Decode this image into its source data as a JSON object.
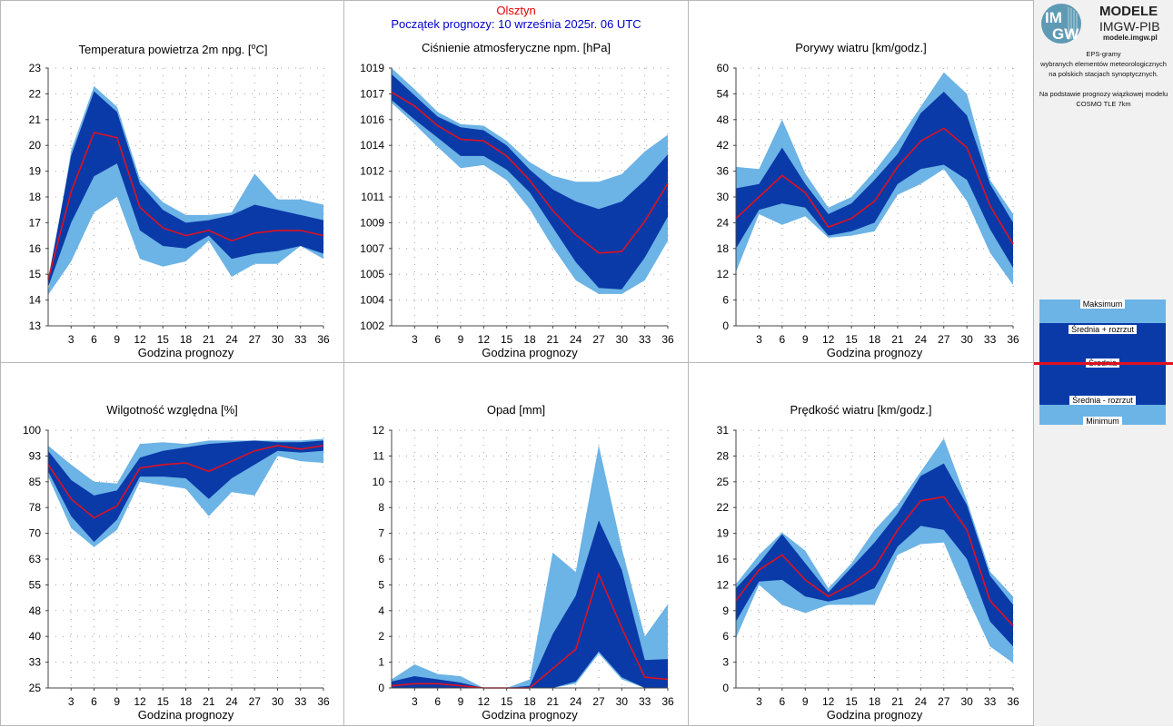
{
  "header": {
    "location": "Olsztyn",
    "forecast_start": "Początek prognozy: 10 września 2025r. 06 UTC"
  },
  "logo": {
    "im": "IM",
    "gw": "GW",
    "title": "MODELE",
    "subtitle": "IMGW-PIB",
    "url": "modele.imgw.pl"
  },
  "description": {
    "line1": "EPS-gramy",
    "line2": "wybranych elementów meteorologicznych",
    "line3": "na polskich stacjach  synoptycznych.",
    "line4": "Na podstawie prognozy wiązkowej modelu",
    "line5": "COSMO TLE 7km"
  },
  "legend": {
    "max": "Maksimum",
    "mean_plus": "Średnia + rozrzut",
    "mean": "Średnia",
    "mean_minus": "Średnia - rozrzut",
    "min": "Minimum"
  },
  "colors": {
    "outer_band": "#6cb3e6",
    "inner_band": "#0a3aa8",
    "mean_line": "#e01020",
    "grid": "#a0a0a0"
  },
  "chart_data": [
    {
      "type": "area",
      "title_html": "Temperatura powietrza 2m npg. [<tspan dy='-5' font-size='9'>o</tspan><tspan dy='5'>C]</tspan>",
      "title": "Temperatura powietrza 2m npg. [oC]",
      "xlabel": "Godzina prognozy",
      "x": [
        0,
        3,
        6,
        9,
        12,
        15,
        18,
        21,
        24,
        27,
        30,
        33,
        36
      ],
      "xticks": [
        3,
        6,
        9,
        12,
        15,
        18,
        21,
        24,
        27,
        30,
        33,
        36
      ],
      "xlim": [
        0,
        36
      ],
      "ylim": [
        13,
        23
      ],
      "yticks": [
        "13",
        "14",
        "15",
        "16",
        "17",
        "18",
        "19",
        "20",
        "21",
        "22",
        "23"
      ],
      "ytick_values": [
        13,
        14,
        15,
        16,
        17,
        18,
        19,
        20,
        21,
        22,
        23
      ],
      "max": [
        14.3,
        19.8,
        22.3,
        21.5,
        18.7,
        17.8,
        17.3,
        17.3,
        17.4,
        18.9,
        17.9,
        17.9,
        17.7
      ],
      "mean_plus": [
        14.8,
        19.6,
        22.1,
        21.3,
        18.5,
        17.5,
        17.0,
        17.1,
        17.3,
        17.7,
        17.5,
        17.3,
        17.1
      ],
      "mean": [
        14.8,
        18.2,
        20.5,
        20.3,
        17.6,
        16.8,
        16.5,
        16.7,
        16.3,
        16.6,
        16.7,
        16.7,
        16.5
      ],
      "mean_minus": [
        14.5,
        17.0,
        18.8,
        19.3,
        16.7,
        16.1,
        16.0,
        16.5,
        15.6,
        15.8,
        15.9,
        16.1,
        15.8
      ],
      "min": [
        14.2,
        15.5,
        17.4,
        18.0,
        15.6,
        15.3,
        15.5,
        16.3,
        14.9,
        15.4,
        15.4,
        16.1,
        15.6
      ]
    },
    {
      "type": "area",
      "title": "Ciśnienie atmosferyczne npm. [hPa]",
      "xlabel": "Godzina prognozy",
      "x": [
        0,
        3,
        6,
        9,
        12,
        15,
        18,
        21,
        24,
        27,
        30,
        33,
        36
      ],
      "xticks": [
        3,
        6,
        9,
        12,
        15,
        18,
        21,
        24,
        27,
        30,
        33,
        36
      ],
      "xlim": [
        0,
        36
      ],
      "ylim": [
        1002.0,
        1019.0
      ],
      "yticks": [
        "1002",
        "1004",
        "1005",
        "1007",
        "1009",
        "1011",
        "1012",
        "1014",
        "1016",
        "1017",
        "1019"
      ],
      "ytick_values": [
        1002.0,
        1003.7,
        1005.4,
        1007.1,
        1008.8,
        1010.5,
        1012.2,
        1013.9,
        1015.6,
        1017.3,
        1019.0
      ],
      "max": [
        1019.0,
        1017.6,
        1016.1,
        1015.3,
        1015.2,
        1014.2,
        1012.8,
        1011.9,
        1011.5,
        1011.5,
        1012.0,
        1013.5,
        1014.6
      ],
      "mean_plus": [
        1018.6,
        1017.2,
        1015.8,
        1015.1,
        1014.9,
        1013.9,
        1012.3,
        1011.0,
        1010.2,
        1009.7,
        1010.2,
        1011.6,
        1013.3
      ],
      "mean": [
        1017.4,
        1016.5,
        1015.2,
        1014.3,
        1014.2,
        1013.2,
        1011.6,
        1009.6,
        1008.0,
        1006.8,
        1006.9,
        1008.9,
        1011.4
      ],
      "mean_minus": [
        1016.9,
        1015.6,
        1014.4,
        1013.2,
        1013.2,
        1012.3,
        1010.8,
        1008.5,
        1006.2,
        1004.5,
        1004.4,
        1006.5,
        1009.2
      ],
      "min": [
        1016.7,
        1015.3,
        1013.8,
        1012.4,
        1012.6,
        1011.6,
        1009.7,
        1007.2,
        1005.0,
        1004.1,
        1004.1,
        1005.0,
        1007.6
      ]
    },
    {
      "type": "area",
      "title": "Porywy wiatru [km/godz.]",
      "xlabel": "Godzina prognozy",
      "x": [
        0,
        3,
        6,
        9,
        12,
        15,
        18,
        21,
        24,
        27,
        30,
        33,
        36
      ],
      "xticks": [
        3,
        6,
        9,
        12,
        15,
        18,
        21,
        24,
        27,
        30,
        33,
        36
      ],
      "xlim": [
        0,
        36
      ],
      "ylim": [
        0,
        60
      ],
      "yticks": [
        "0",
        "6",
        "12",
        "18",
        "24",
        "30",
        "36",
        "42",
        "48",
        "54",
        "60"
      ],
      "ytick_values": [
        0,
        6,
        12,
        18,
        24,
        30,
        36,
        42,
        48,
        54,
        60
      ],
      "max": [
        37.0,
        36.5,
        48.0,
        35.5,
        27.5,
        30.0,
        36.0,
        43.0,
        51.0,
        59.0,
        54.0,
        34.0,
        26.0
      ],
      "mean_plus": [
        32.0,
        33.0,
        41.5,
        33.0,
        26.0,
        28.5,
        34.0,
        40.0,
        49.5,
        54.5,
        49.0,
        33.0,
        24.0
      ],
      "mean": [
        25.0,
        30.0,
        35.0,
        31.0,
        23.0,
        25.0,
        29.0,
        37.0,
        43.0,
        46.0,
        41.5,
        28.0,
        19.0
      ],
      "mean_minus": [
        18.0,
        27.0,
        28.5,
        27.5,
        21.0,
        22.0,
        24.0,
        33.0,
        36.5,
        37.5,
        34.0,
        22.5,
        13.5
      ],
      "min": [
        12.5,
        26.0,
        23.5,
        25.5,
        20.5,
        21.0,
        22.0,
        30.5,
        33.0,
        36.5,
        29.0,
        17.0,
        9.5
      ]
    },
    {
      "type": "area",
      "title": "Wilgotność względna [%]",
      "xlabel": "Godzina prognozy",
      "x": [
        0,
        3,
        6,
        9,
        12,
        15,
        18,
        21,
        24,
        27,
        30,
        33,
        36
      ],
      "xticks": [
        3,
        6,
        9,
        12,
        15,
        18,
        21,
        24,
        27,
        30,
        33,
        36
      ],
      "xlim": [
        0,
        36
      ],
      "ylim": [
        25,
        100
      ],
      "yticks": [
        "25",
        "33",
        "40",
        "48",
        "55",
        "63",
        "70",
        "78",
        "85",
        "93",
        "100"
      ],
      "ytick_values": [
        25,
        32.5,
        40,
        47.5,
        55,
        62.5,
        70,
        77.5,
        85,
        92.5,
        100
      ],
      "max": [
        95.5,
        90.0,
        85.0,
        84.5,
        96.0,
        96.5,
        96.0,
        97.0,
        97.0,
        97.0,
        97.0,
        97.0,
        97.5
      ],
      "mean_plus": [
        94.0,
        85.5,
        81.0,
        82.5,
        92.0,
        94.0,
        95.0,
        96.0,
        96.5,
        97.0,
        96.5,
        96.5,
        97.0
      ],
      "mean": [
        90.0,
        80.0,
        74.5,
        78.0,
        89.0,
        90.0,
        90.5,
        88.0,
        91.0,
        94.0,
        95.5,
        94.5,
        95.5
      ],
      "mean_minus": [
        88.0,
        75.0,
        67.5,
        74.0,
        86.5,
        86.5,
        86.0,
        80.0,
        86.0,
        90.0,
        94.0,
        93.5,
        94.0
      ],
      "min": [
        86.5,
        71.5,
        66.0,
        71.0,
        85.0,
        84.0,
        83.0,
        75.0,
        82.0,
        81.0,
        92.5,
        91.0,
        90.5
      ]
    },
    {
      "type": "area",
      "title": "Opad [mm]",
      "xlabel": "Godzina prognozy",
      "x": [
        0,
        3,
        6,
        9,
        12,
        15,
        18,
        21,
        24,
        27,
        30,
        33,
        36
      ],
      "xticks": [
        3,
        6,
        9,
        12,
        15,
        18,
        21,
        24,
        27,
        30,
        33,
        36
      ],
      "xlim": [
        0,
        36
      ],
      "ylim": [
        0,
        12
      ],
      "yticks": [
        "0",
        "1",
        "2",
        "4",
        "5",
        "6",
        "7",
        "8",
        "10",
        "11",
        "12"
      ],
      "ytick_values": [
        0,
        1.2,
        2.4,
        3.6,
        4.8,
        6.0,
        7.2,
        8.4,
        9.6,
        10.8,
        12.0
      ],
      "max": [
        0.4,
        1.1,
        0.65,
        0.55,
        0.0,
        0.0,
        0.4,
        6.3,
        5.4,
        11.3,
        6.5,
        2.4,
        3.9
      ],
      "mean_plus": [
        0.3,
        0.55,
        0.4,
        0.25,
        0.0,
        0.0,
        0.1,
        2.5,
        4.3,
        7.8,
        5.5,
        1.3,
        1.35
      ],
      "mean": [
        0.1,
        0.2,
        0.2,
        0.1,
        0.0,
        0.0,
        0.0,
        0.9,
        1.8,
        5.3,
        2.8,
        0.5,
        0.4
      ],
      "mean_minus": [
        0.0,
        0.0,
        0.0,
        0.0,
        0.0,
        0.0,
        0.0,
        0.0,
        0.3,
        1.7,
        0.5,
        0.0,
        0.0
      ],
      "min": [
        0.0,
        0.0,
        0.0,
        0.0,
        0.0,
        0.0,
        0.0,
        0.0,
        0.2,
        1.6,
        0.4,
        0.0,
        0.0
      ]
    },
    {
      "type": "area",
      "title": "Prędkość wiatru [km/godz.]",
      "xlabel": "Godzina prognozy",
      "x": [
        0,
        3,
        6,
        9,
        12,
        15,
        18,
        21,
        24,
        27,
        30,
        33,
        36
      ],
      "xticks": [
        3,
        6,
        9,
        12,
        15,
        18,
        21,
        24,
        27,
        30,
        33,
        36
      ],
      "xlim": [
        0,
        36
      ],
      "ylim": [
        0,
        31
      ],
      "yticks": [
        "0",
        "3",
        "6",
        "9",
        "12",
        "16",
        "19",
        "22",
        "25",
        "28",
        "31"
      ],
      "ytick_values": [
        0,
        3.1,
        6.2,
        9.3,
        12.4,
        15.5,
        18.6,
        21.7,
        24.8,
        27.9,
        31.0
      ],
      "max": [
        12.5,
        16.0,
        18.7,
        16.5,
        12.0,
        15.0,
        19.0,
        22.0,
        26.0,
        30.0,
        22.5,
        14.0,
        11.0
      ],
      "mean_plus": [
        12.0,
        15.0,
        18.5,
        15.0,
        11.5,
        14.5,
        17.5,
        21.0,
        25.5,
        27.0,
        22.0,
        13.5,
        10.0
      ],
      "mean": [
        10.5,
        14.2,
        16.0,
        13.0,
        11.0,
        12.5,
        14.5,
        19.0,
        22.5,
        23.0,
        19.0,
        10.5,
        7.5
      ],
      "mean_minus": [
        8.0,
        12.8,
        13.0,
        11.0,
        10.4,
        11.0,
        12.0,
        17.0,
        19.5,
        19.0,
        15.5,
        8.0,
        5.0
      ],
      "min": [
        6.0,
        12.4,
        10.0,
        9.0,
        10.0,
        10.0,
        10.0,
        16.0,
        17.3,
        17.5,
        11.0,
        5.0,
        3.0
      ]
    }
  ]
}
